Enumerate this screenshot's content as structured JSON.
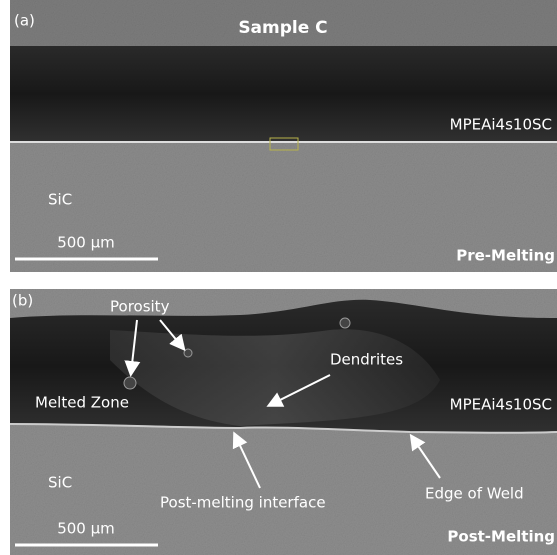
{
  "panels": [
    {
      "label": "(a)",
      "title": "Sample C",
      "layer_label": "MPEAi4s10SC",
      "substrate_label": "SiC",
      "scale_bar": "500 µm",
      "state": "Pre-Melting"
    },
    {
      "label": "(b)",
      "porosity": "Porosity",
      "melted_zone": "Melted Zone",
      "dendrites": "Dendrites",
      "layer_label": "MPEAi4s10SC",
      "substrate_label": "SiC",
      "interface": "Post-melting interface",
      "edge": "Edge of Weld",
      "scale_bar": "500 µm",
      "state": "Post-Melting"
    }
  ]
}
